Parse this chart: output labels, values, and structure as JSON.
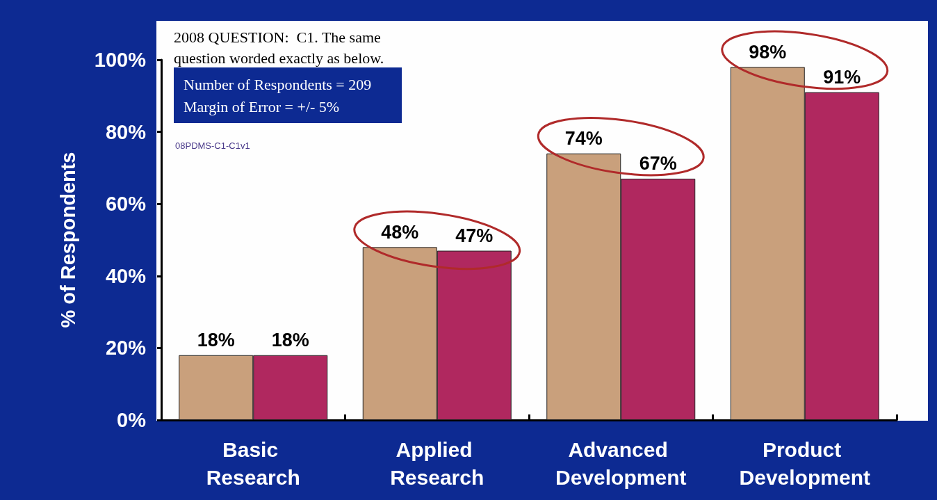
{
  "chart_data": {
    "type": "bar",
    "ylabel": "% of Respondents",
    "categories": [
      "Basic Research",
      "Applied Research",
      "Advanced Development",
      "Product Development"
    ],
    "series": [
      {
        "color": "#c9a07c",
        "values": [
          18,
          48,
          74,
          98
        ],
        "value_labels": [
          "18%",
          "48%",
          "74%",
          "98%"
        ]
      },
      {
        "color": "#b0285f",
        "values": [
          18,
          47,
          67,
          91
        ],
        "value_labels": [
          "18%",
          "47%",
          "67%",
          "91%"
        ]
      }
    ],
    "ylim": [
      0,
      100
    ],
    "yticks": [
      {
        "value": 0,
        "label": "0%"
      },
      {
        "value": 20,
        "label": "20%"
      },
      {
        "value": 40,
        "label": "40%"
      },
      {
        "value": 60,
        "label": "60%"
      },
      {
        "value": 80,
        "label": "80%"
      },
      {
        "value": 100,
        "label": "100%"
      }
    ],
    "grid": false,
    "annotations": [
      "2008 QUESTION:  C1. The same question worded exactly as below.",
      "Number of Respondents = 209 Margin of Error = +/- 5%",
      "08PDMS-C1-C1v1"
    ]
  }
}
